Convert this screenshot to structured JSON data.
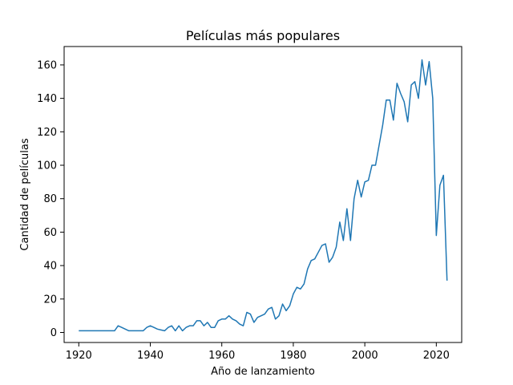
{
  "chart_data": {
    "type": "line",
    "title": "Películas más populares",
    "xlabel": "Año de lanzamiento",
    "ylabel": "Cantidad de películas",
    "xlim": [
      1915.9,
      2027.1
    ],
    "ylim": [
      -6,
      171
    ],
    "xticks": [
      1920,
      1940,
      1960,
      1980,
      2000,
      2020
    ],
    "yticks": [
      0,
      20,
      40,
      60,
      80,
      100,
      120,
      140,
      160
    ],
    "grid": false,
    "series": [
      {
        "name": "",
        "color": "#1f77b4",
        "x": [
          1920,
          1921,
          1922,
          1923,
          1924,
          1925,
          1926,
          1927,
          1928,
          1929,
          1930,
          1931,
          1932,
          1933,
          1934,
          1935,
          1936,
          1937,
          1938,
          1939,
          1940,
          1941,
          1942,
          1943,
          1944,
          1945,
          1946,
          1947,
          1948,
          1949,
          1950,
          1951,
          1952,
          1953,
          1954,
          1955,
          1956,
          1957,
          1958,
          1959,
          1960,
          1961,
          1962,
          1963,
          1964,
          1965,
          1966,
          1967,
          1968,
          1969,
          1970,
          1971,
          1972,
          1973,
          1974,
          1975,
          1976,
          1977,
          1978,
          1979,
          1980,
          1981,
          1982,
          1983,
          1984,
          1985,
          1986,
          1987,
          1988,
          1989,
          1990,
          1991,
          1992,
          1993,
          1994,
          1995,
          1996,
          1997,
          1998,
          1999,
          2000,
          2001,
          2002,
          2003,
          2004,
          2005,
          2006,
          2007,
          2008,
          2009,
          2010,
          2011,
          2012,
          2013,
          2014,
          2015,
          2016,
          2017,
          2018,
          2019,
          2020,
          2021,
          2022,
          2023
        ],
        "values": [
          1,
          1,
          1,
          1,
          1,
          1,
          1,
          1,
          1,
          1,
          1,
          4,
          3,
          2,
          1,
          1,
          1,
          1,
          1,
          3,
          4,
          3,
          2,
          1.5,
          1,
          3,
          4,
          1,
          4,
          1,
          3,
          4,
          4,
          7,
          7,
          4,
          6,
          3,
          3,
          7,
          8,
          8,
          10,
          8,
          7,
          5,
          4,
          12,
          11,
          6,
          9,
          10,
          11,
          14,
          15,
          8,
          10,
          17,
          13,
          16,
          23,
          27,
          26,
          29,
          38,
          43,
          44,
          48,
          52,
          53,
          42,
          45,
          51,
          66,
          55,
          74,
          55,
          80,
          91,
          81,
          90,
          91,
          100,
          100,
          112,
          124,
          139,
          139,
          127,
          149,
          143,
          138,
          126,
          148,
          150,
          140,
          163,
          148,
          162,
          140,
          58,
          88,
          94,
          31
        ]
      }
    ]
  }
}
